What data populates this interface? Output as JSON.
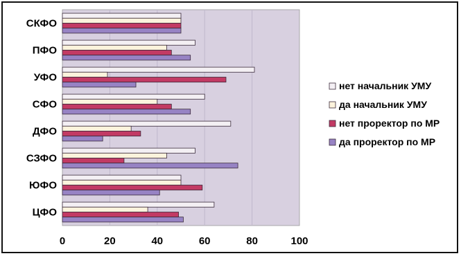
{
  "chart_data": {
    "type": "bar",
    "orientation": "horizontal",
    "categories": [
      "СКФО",
      "ПФО",
      "УФО",
      "СФО",
      "ДФО",
      "СЗФО",
      "ЮФО",
      "ЦФО"
    ],
    "series": [
      {
        "name": "нет начальник УМУ",
        "color": "#f4f0f4",
        "values": [
          50,
          56,
          81,
          60,
          71,
          56,
          50,
          64
        ]
      },
      {
        "name": "да начальник УМУ",
        "color": "#fcf3dc",
        "values": [
          50,
          44,
          19,
          40,
          29,
          44,
          50,
          36
        ]
      },
      {
        "name": "нет проректор по МР",
        "color": "#c23a64",
        "values": [
          50,
          46,
          69,
          46,
          33,
          26,
          59,
          49
        ]
      },
      {
        "name": "да проректор по МР",
        "color": "#9783c4",
        "values": [
          50,
          54,
          31,
          54,
          17,
          74,
          41,
          51
        ]
      }
    ],
    "xlim": [
      0,
      100
    ],
    "xticks": [
      0,
      20,
      40,
      60,
      80,
      100
    ],
    "grid": true,
    "legend_position": "right",
    "plot_background": "#d8d0e0"
  }
}
